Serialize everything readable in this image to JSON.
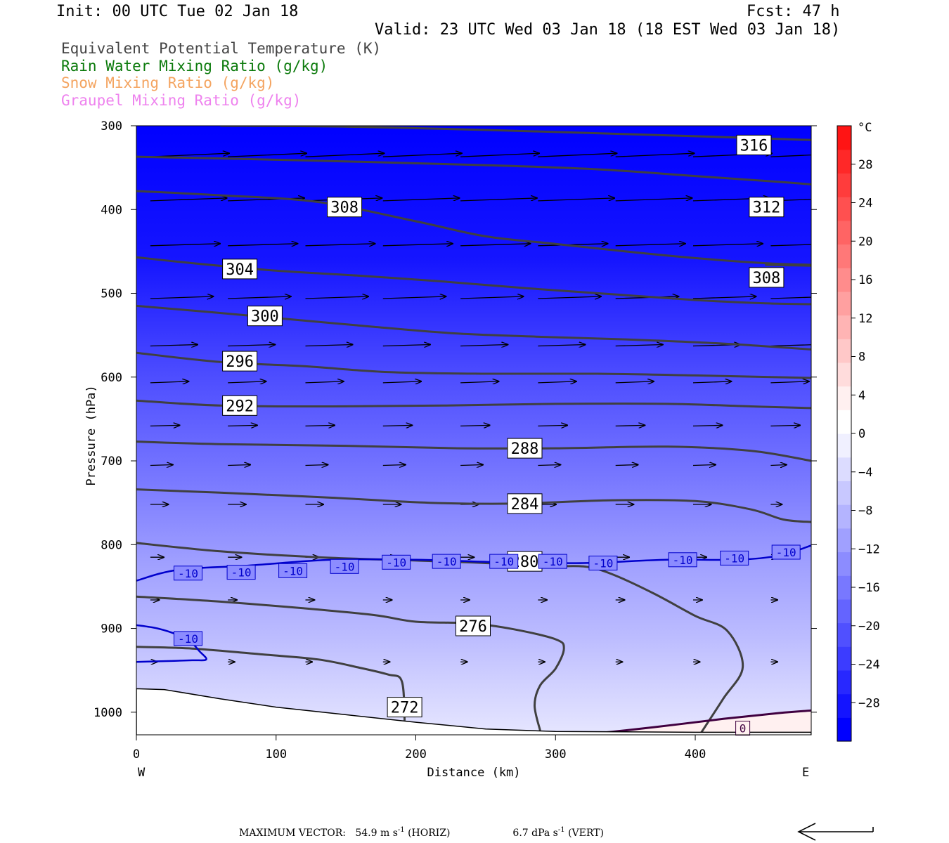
{
  "header": {
    "init": "Init: 00 UTC Tue 02 Jan 18",
    "fcst": "Fcst:   47 h",
    "valid": "Valid: 23 UTC Wed 03 Jan 18 (18 EST Wed 03 Jan 18)"
  },
  "fields": [
    {
      "label": "Equivalent Potential Temperature (K)",
      "color": "#444444"
    },
    {
      "label": "Rain Water Mixing Ratio (g/kg)",
      "color": "#0b7a0b"
    },
    {
      "label": "Snow Mixing Ratio (g/kg)",
      "color": "#f4a460"
    },
    {
      "label": "Graupel Mixing Ratio (g/kg)",
      "color": "#ee82ee"
    }
  ],
  "footer": {
    "max_vector_label": "MAXIMUM VECTOR:",
    "horiz_value": "54.9 m s",
    "horiz_exp": "-1",
    "horiz_tag": "(HORIZ)",
    "vert_value": "6.7 dPa s",
    "vert_exp": "-1",
    "vert_tag": "(VERT)"
  },
  "chart_data": {
    "type": "cross-section",
    "xlabel": "Distance (km)",
    "ylabel": "Pressure (hPa)",
    "xlim": [
      0,
      483
    ],
    "ylim": [
      1027,
      300
    ],
    "x_ticks": [
      0,
      100,
      200,
      300,
      400
    ],
    "y_ticks": [
      300,
      400,
      500,
      600,
      700,
      800,
      900,
      1000
    ],
    "x_end_labels": {
      "left": "W",
      "right": "E"
    },
    "colorbar": {
      "unit": "°C",
      "levels": [
        28,
        24,
        20,
        16,
        12,
        8,
        4,
        0,
        -4,
        -8,
        -12,
        -16,
        -20,
        -24,
        -28
      ],
      "range": [
        -32,
        32
      ],
      "colors": [
        "#0000ff",
        "#1414ff",
        "#2828ff",
        "#3c3cff",
        "#5050ff",
        "#6464ff",
        "#7878ff",
        "#8c8cff",
        "#a0a0ff",
        "#b4b4ff",
        "#c8c8ff",
        "#dcdcff",
        "#f0f0ff",
        "#ffffff",
        "#fff0f0",
        "#ffdcdc",
        "#ffc8c8",
        "#ffb4b4",
        "#ffa0a0",
        "#ff8c8c",
        "#ff7878",
        "#ff6464",
        "#ff5050",
        "#ff3c3c",
        "#ff2828",
        "#ff1414"
      ]
    },
    "theta_e_contours": [
      {
        "level": "316",
        "points": [
          [
            60,
            300
          ],
          [
            150,
            301
          ],
          [
            250,
            305
          ],
          [
            350,
            310
          ],
          [
            430,
            314
          ],
          [
            483,
            317
          ]
        ],
        "label_at": [
          442,
          323
        ]
      },
      {
        "level": "312",
        "points": [
          [
            0,
            337
          ],
          [
            60,
            339
          ],
          [
            160,
            343
          ],
          [
            250,
            347
          ],
          [
            330,
            352
          ],
          [
            400,
            360
          ],
          [
            460,
            367
          ],
          [
            483,
            370
          ]
        ],
        "label_at": [
          451,
          397
        ]
      },
      {
        "level": "308",
        "points": [
          [
            0,
            378
          ],
          [
            60,
            383
          ],
          [
            130,
            391
          ],
          [
            200,
            414
          ],
          [
            250,
            432
          ],
          [
            300,
            441
          ],
          [
            350,
            450
          ],
          [
            400,
            458
          ],
          [
            450,
            464
          ],
          [
            483,
            466
          ]
        ],
        "label_at": [
          149,
          397
        ]
      },
      {
        "level": "308",
        "points": [
          [
            450,
            466
          ],
          [
            483,
            467
          ]
        ],
        "label_at": [
          451,
          481
        ]
      },
      {
        "level": "304",
        "points": [
          [
            0,
            457
          ],
          [
            40,
            464
          ],
          [
            100,
            473
          ],
          [
            160,
            479
          ],
          [
            220,
            486
          ],
          [
            280,
            494
          ],
          [
            340,
            501
          ],
          [
            400,
            508
          ],
          [
            450,
            512
          ],
          [
            483,
            513
          ]
        ],
        "label_at": [
          74,
          471
        ]
      },
      {
        "level": "300",
        "points": [
          [
            0,
            515
          ],
          [
            50,
            522
          ],
          [
            110,
            531
          ],
          [
            170,
            540
          ],
          [
            230,
            548
          ],
          [
            290,
            552
          ],
          [
            350,
            555
          ],
          [
            420,
            560
          ],
          [
            483,
            567
          ]
        ],
        "label_at": [
          92,
          527
        ]
      },
      {
        "level": "296",
        "points": [
          [
            0,
            571
          ],
          [
            60,
            582
          ],
          [
            120,
            587
          ],
          [
            180,
            594
          ],
          [
            250,
            596
          ],
          [
            330,
            596
          ],
          [
            400,
            598
          ],
          [
            483,
            601
          ]
        ],
        "label_at": [
          74,
          581
        ]
      },
      {
        "level": "292",
        "points": [
          [
            0,
            628
          ],
          [
            60,
            634
          ],
          [
            140,
            635
          ],
          [
            220,
            634
          ],
          [
            300,
            632
          ],
          [
            380,
            632
          ],
          [
            440,
            635
          ],
          [
            483,
            637
          ]
        ],
        "label_at": [
          74,
          634
        ]
      },
      {
        "level": "288",
        "points": [
          [
            0,
            677
          ],
          [
            60,
            680
          ],
          [
            150,
            682
          ],
          [
            230,
            685
          ],
          [
            300,
            685
          ],
          [
            380,
            683
          ],
          [
            440,
            688
          ],
          [
            483,
            700
          ]
        ],
        "label_at": [
          278,
          685
        ]
      },
      {
        "level": "284",
        "points": [
          [
            0,
            734
          ],
          [
            60,
            738
          ],
          [
            140,
            744
          ],
          [
            210,
            750
          ],
          [
            270,
            751
          ],
          [
            340,
            747
          ],
          [
            400,
            748
          ],
          [
            440,
            758
          ],
          [
            463,
            770
          ],
          [
            483,
            773
          ]
        ],
        "label_at": [
          278,
          751
        ]
      },
      {
        "level": "280",
        "points": [
          [
            0,
            798
          ],
          [
            60,
            808
          ],
          [
            130,
            815
          ],
          [
            200,
            819
          ],
          [
            250,
            822
          ],
          [
            290,
            826
          ],
          [
            320,
            826
          ],
          [
            340,
            835
          ],
          [
            370,
            858
          ],
          [
            400,
            885
          ],
          [
            423,
            903
          ],
          [
            434,
            946
          ],
          [
            420,
            984
          ],
          [
            404,
            1025
          ]
        ],
        "label_at": [
          278,
          820
        ]
      },
      {
        "level": "276",
        "points": [
          [
            0,
            862
          ],
          [
            60,
            868
          ],
          [
            120,
            876
          ],
          [
            170,
            884
          ],
          [
            200,
            892
          ],
          [
            240,
            894
          ],
          [
            270,
            901
          ],
          [
            300,
            913
          ],
          [
            306,
            924
          ],
          [
            300,
            948
          ],
          [
            289,
            968
          ],
          [
            285,
            992
          ],
          [
            289,
            1022
          ]
        ],
        "label_at": [
          241,
          897
        ]
      },
      {
        "level": "272",
        "points": [
          [
            0,
            922
          ],
          [
            40,
            924
          ],
          [
            90,
            931
          ],
          [
            130,
            937
          ],
          [
            160,
            947
          ],
          [
            180,
            955
          ],
          [
            190,
            963
          ],
          [
            192,
            1010
          ]
        ],
        "label_at": [
          192,
          994
        ]
      }
    ],
    "temperature_contours": [
      {
        "level": "-10",
        "color": "#0000cc",
        "points": [
          [
            0,
            843
          ],
          [
            30,
            830
          ],
          [
            80,
            825
          ],
          [
            140,
            818
          ],
          [
            200,
            818
          ],
          [
            260,
            821
          ],
          [
            320,
            822
          ],
          [
            380,
            818
          ],
          [
            430,
            818
          ],
          [
            460,
            813
          ],
          [
            483,
            801
          ]
        ],
        "labels_at": [
          [
            37,
            834
          ],
          [
            75,
            833
          ],
          [
            112,
            831
          ],
          [
            149,
            826
          ],
          [
            186,
            821
          ],
          [
            222,
            820
          ],
          [
            263,
            820
          ],
          [
            298,
            820
          ],
          [
            334,
            822
          ],
          [
            391,
            818
          ],
          [
            428,
            816
          ],
          [
            465,
            809
          ]
        ]
      },
      {
        "level": "-10",
        "color": "#0000cc",
        "points": [
          [
            0,
            896
          ],
          [
            15,
            900
          ],
          [
            30,
            908
          ],
          [
            40,
            918
          ],
          [
            45,
            927
          ],
          [
            50,
            937
          ],
          [
            40,
            938
          ],
          [
            20,
            939
          ],
          [
            0,
            940
          ]
        ],
        "labels_at": [
          [
            37,
            912
          ]
        ]
      },
      {
        "level": "0",
        "color": "#400040",
        "points": [
          [
            320,
            1027
          ],
          [
            370,
            1018
          ],
          [
            420,
            1008
          ],
          [
            460,
            1001
          ],
          [
            483,
            998
          ]
        ],
        "labels_at": [
          [
            434,
            1019
          ]
        ]
      }
    ],
    "terrain": [
      [
        0,
        972
      ],
      [
        20,
        973
      ],
      [
        60,
        984
      ],
      [
        100,
        994
      ],
      [
        150,
        1003
      ],
      [
        200,
        1012
      ],
      [
        250,
        1020
      ],
      [
        300,
        1023
      ],
      [
        400,
        1024
      ],
      [
        483,
        1024
      ]
    ]
  }
}
